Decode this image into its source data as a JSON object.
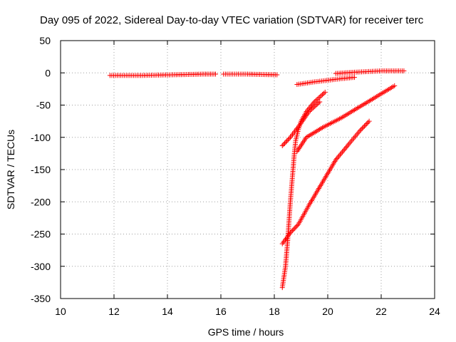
{
  "chart_data": {
    "type": "scatter",
    "title": "Day 095 of 2022, Sidereal Day-to-day VTEC variation (SDTVAR) for receiver terc",
    "xlabel": "GPS time / hours",
    "ylabel": "SDTVAR / TECUs",
    "xlim": [
      10,
      24
    ],
    "ylim": [
      -350,
      50
    ],
    "xticks": [
      10,
      12,
      14,
      16,
      18,
      20,
      22,
      24
    ],
    "yticks": [
      50,
      0,
      -50,
      -100,
      -150,
      -200,
      -250,
      -300,
      -350
    ],
    "grid": true,
    "marker": "+",
    "color": "#ff0000",
    "series": [
      {
        "name": "track-1",
        "x": [
          11.85,
          13.0,
          14.2,
          15.3,
          15.8
        ],
        "y": [
          -4,
          -4,
          -3,
          -2,
          -2
        ]
      },
      {
        "name": "track-2",
        "x": [
          16.1,
          17.0,
          18.1
        ],
        "y": [
          -2,
          -2,
          -3
        ]
      },
      {
        "name": "track-3",
        "x": [
          20.3,
          21.0,
          22.0,
          22.85
        ],
        "y": [
          -1,
          1,
          3,
          3
        ]
      },
      {
        "name": "track-4",
        "x": [
          18.85,
          19.5,
          20.5,
          21.0
        ],
        "y": [
          -18,
          -14,
          -9,
          -7
        ]
      },
      {
        "name": "track-5",
        "x": [
          18.3,
          18.42,
          18.5,
          18.55,
          18.6,
          18.65,
          18.7,
          18.75,
          18.8,
          18.9,
          19.0,
          19.2,
          19.5,
          19.9
        ],
        "y": [
          -333,
          -300,
          -260,
          -230,
          -200,
          -175,
          -150,
          -125,
          -105,
          -88,
          -75,
          -60,
          -45,
          -30
        ]
      },
      {
        "name": "track-6",
        "x": [
          18.3,
          18.6,
          19.0,
          19.3,
          19.7
        ],
        "y": [
          -113,
          -100,
          -78,
          -60,
          -45
        ]
      },
      {
        "name": "track-7",
        "x": [
          18.85,
          19.2,
          19.8,
          20.5,
          21.5,
          22.5
        ],
        "y": [
          -122,
          -100,
          -85,
          -70,
          -45,
          -20
        ]
      },
      {
        "name": "track-8",
        "x": [
          18.3,
          18.6,
          18.9,
          19.3,
          19.8,
          20.3,
          20.8,
          21.2,
          21.55
        ],
        "y": [
          -265,
          -248,
          -235,
          -205,
          -170,
          -135,
          -110,
          -90,
          -75
        ]
      }
    ]
  }
}
